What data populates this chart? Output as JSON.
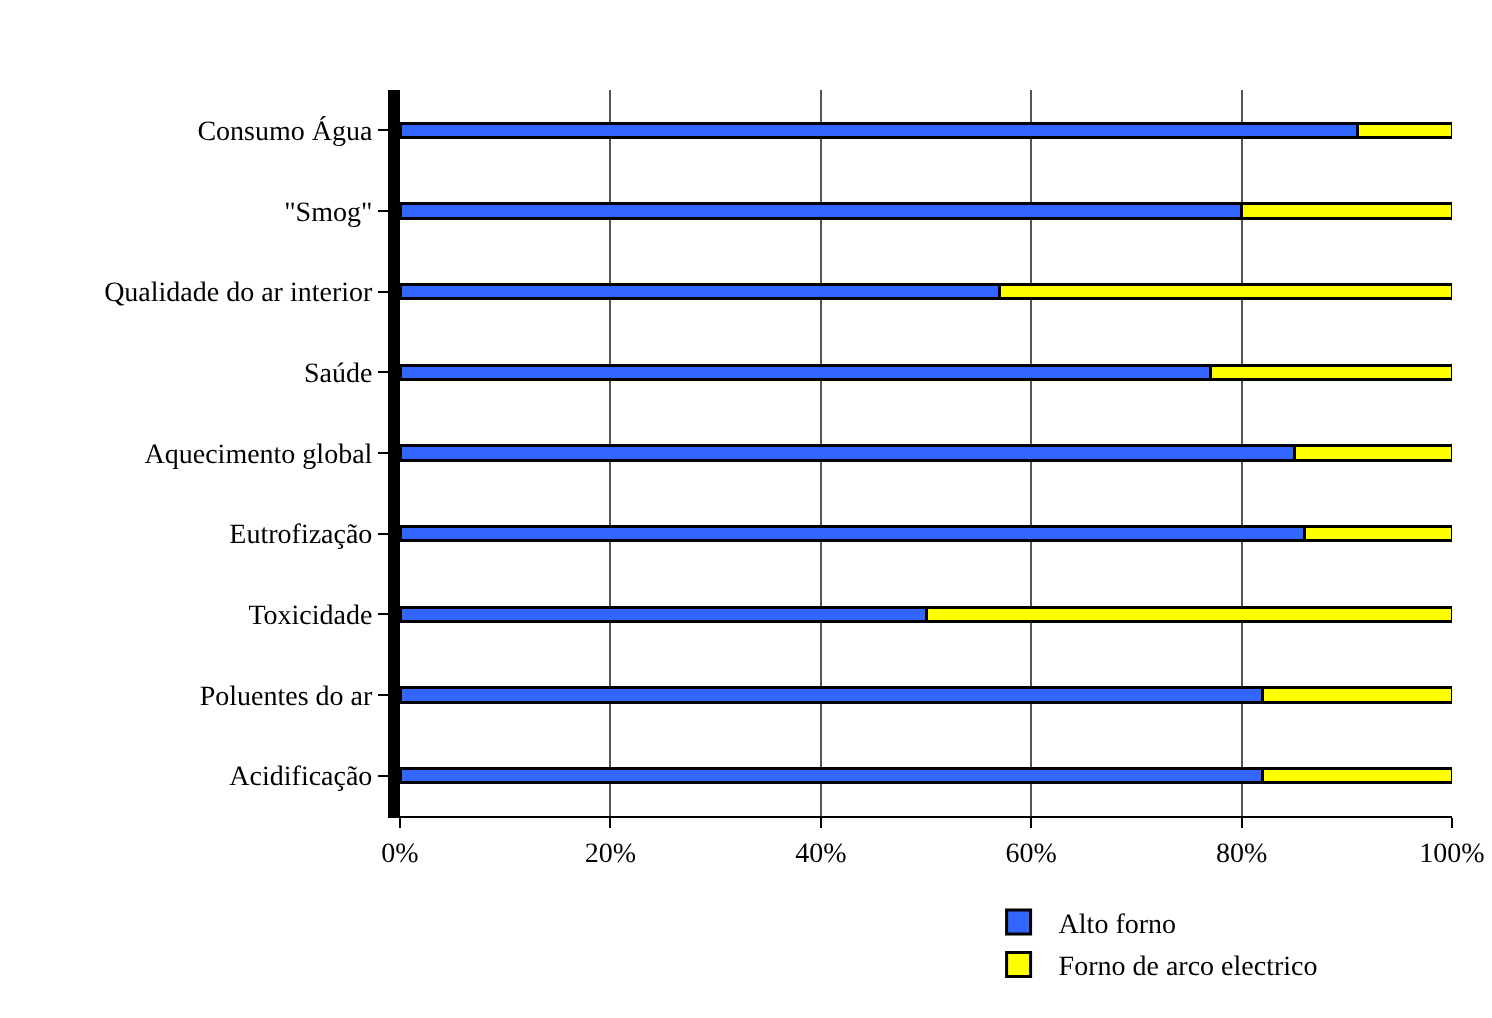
{
  "chart_data": {
    "type": "bar",
    "orientation": "horizontal",
    "stacked": true,
    "categories": [
      "Consumo Água",
      "\"Smog\"",
      "Qualidade do ar interior",
      "Saúde",
      "Aquecimento global",
      "Eutrofização",
      "Toxicidade",
      "Poluentes do ar",
      "Acidificação"
    ],
    "series": [
      {
        "name": "Alto forno",
        "color": "#3366ff",
        "values": [
          91,
          80,
          57,
          77,
          85,
          86,
          50,
          82,
          82
        ]
      },
      {
        "name": "Forno de arco electrico",
        "color": "#ffff00",
        "values": [
          9,
          20,
          43,
          23,
          15,
          14,
          50,
          18,
          18
        ]
      }
    ],
    "xlim": [
      0,
      100
    ],
    "xticks": [
      {
        "value": 0,
        "label": "0%"
      },
      {
        "value": 20,
        "label": "20%"
      },
      {
        "value": 40,
        "label": "40%"
      },
      {
        "value": 60,
        "label": "60%"
      },
      {
        "value": 80,
        "label": "80%"
      },
      {
        "value": 100,
        "label": "100%"
      }
    ],
    "grid": "x",
    "legend": "bottom"
  }
}
